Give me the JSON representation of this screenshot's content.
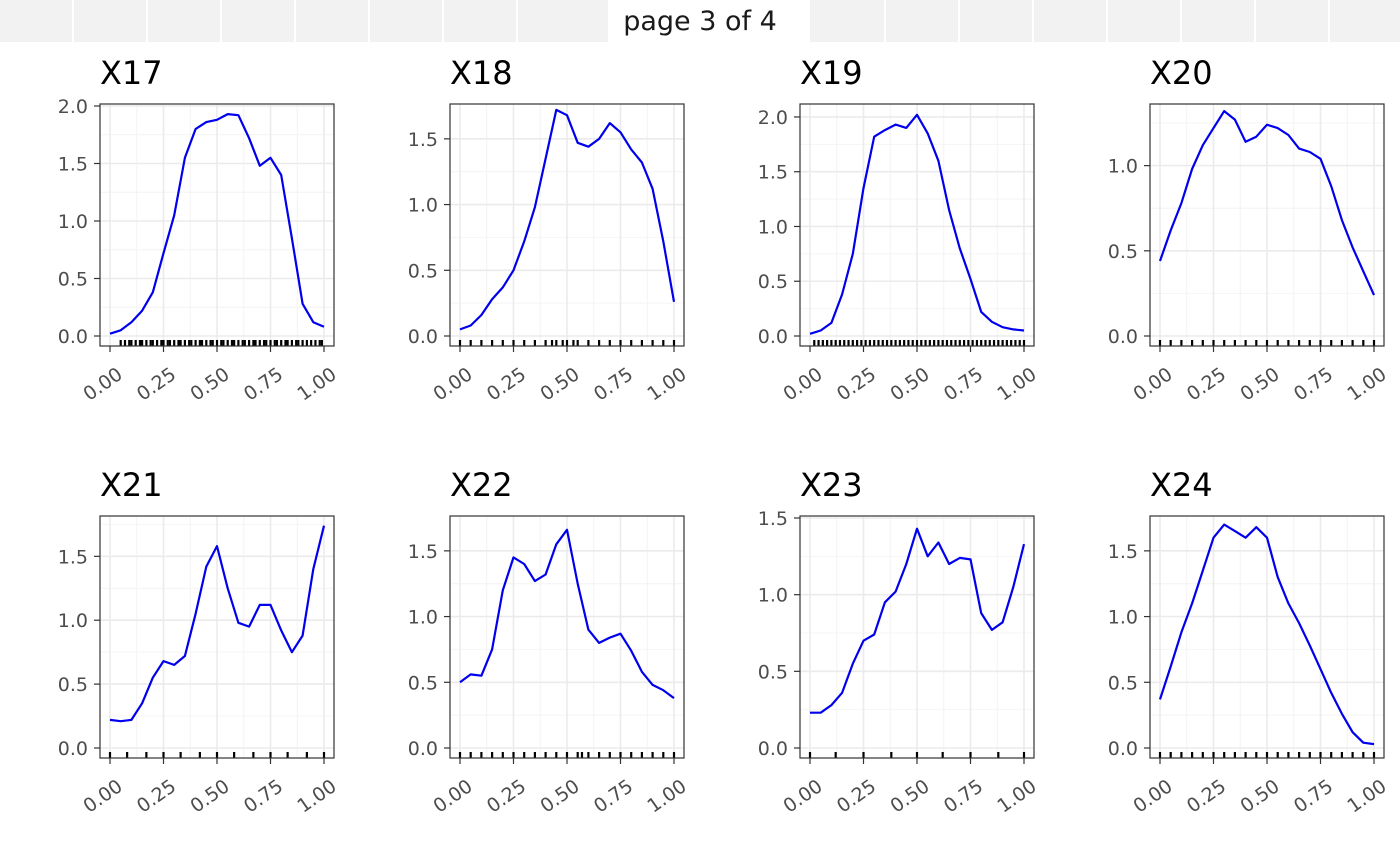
{
  "pager": {
    "label": "page 3 of 4"
  },
  "colors": {
    "line": "#0000ee",
    "grid_major": "#ebebeb",
    "grid_minor": "#f4f4f4",
    "panel_border": "#333333",
    "rug": "#000000",
    "pager_bg": "#f2f2f2"
  },
  "chart_data": [
    {
      "type": "line",
      "title": "X17",
      "xlim": [
        0,
        1
      ],
      "ylim": [
        0,
        2.0
      ],
      "xticks": [
        "0.00",
        "0.25",
        "0.50",
        "0.75",
        "1.00"
      ],
      "yticks": [
        "0.0",
        "0.5",
        "1.0",
        "1.5",
        "2.0"
      ],
      "x": [
        0,
        0.05,
        0.1,
        0.15,
        0.2,
        0.25,
        0.3,
        0.35,
        0.4,
        0.45,
        0.5,
        0.55,
        0.6,
        0.65,
        0.7,
        0.75,
        0.8,
        0.85,
        0.9,
        0.95,
        1.0
      ],
      "y": [
        0.02,
        0.05,
        0.12,
        0.22,
        0.38,
        0.72,
        1.05,
        1.55,
        1.8,
        1.86,
        1.88,
        1.93,
        1.92,
        1.72,
        1.48,
        1.55,
        1.4,
        0.85,
        0.28,
        0.12,
        0.08
      ],
      "rug": [
        0.05,
        0.07,
        0.09,
        0.1,
        0.12,
        0.14,
        0.15,
        0.17,
        0.19,
        0.2,
        0.22,
        0.24,
        0.25,
        0.27,
        0.28,
        0.3,
        0.32,
        0.33,
        0.35,
        0.37,
        0.38,
        0.4,
        0.42,
        0.43,
        0.45,
        0.47,
        0.48,
        0.5,
        0.52,
        0.53,
        0.55,
        0.57,
        0.58,
        0.6,
        0.62,
        0.63,
        0.65,
        0.67,
        0.68,
        0.7,
        0.72,
        0.73,
        0.75,
        0.77,
        0.78,
        0.8,
        0.82,
        0.83,
        0.85,
        0.87,
        0.88,
        0.9,
        0.92,
        0.94,
        0.96,
        0.98,
        0.99
      ]
    },
    {
      "type": "line",
      "title": "X18",
      "xlim": [
        0,
        1
      ],
      "ylim": [
        0,
        1.75
      ],
      "xticks": [
        "0.00",
        "0.25",
        "0.50",
        "0.75",
        "1.00"
      ],
      "yticks": [
        "0.0",
        "0.5",
        "1.0",
        "1.5"
      ],
      "x": [
        0,
        0.05,
        0.1,
        0.15,
        0.2,
        0.25,
        0.3,
        0.35,
        0.4,
        0.45,
        0.5,
        0.55,
        0.6,
        0.65,
        0.7,
        0.75,
        0.8,
        0.85,
        0.9,
        0.95,
        1.0
      ],
      "y": [
        0.05,
        0.08,
        0.16,
        0.28,
        0.37,
        0.5,
        0.72,
        0.98,
        1.35,
        1.72,
        1.68,
        1.47,
        1.44,
        1.5,
        1.62,
        1.55,
        1.42,
        1.32,
        1.12,
        0.72,
        0.26
      ],
      "rug": [
        0.0,
        0.05,
        0.1,
        0.15,
        0.2,
        0.25,
        0.3,
        0.35,
        0.4,
        0.43,
        0.45,
        0.48,
        0.5,
        0.53,
        0.55,
        0.6,
        0.65,
        0.7,
        0.75,
        0.8,
        0.85,
        0.9,
        0.95,
        1.0
      ]
    },
    {
      "type": "line",
      "title": "X19",
      "xlim": [
        0,
        1
      ],
      "ylim": [
        0,
        2.1
      ],
      "xticks": [
        "0.00",
        "0.25",
        "0.50",
        "0.75",
        "1.00"
      ],
      "yticks": [
        "0.0",
        "0.5",
        "1.0",
        "1.5",
        "2.0"
      ],
      "x": [
        0,
        0.05,
        0.1,
        0.15,
        0.2,
        0.25,
        0.3,
        0.35,
        0.4,
        0.45,
        0.5,
        0.55,
        0.6,
        0.65,
        0.7,
        0.75,
        0.8,
        0.85,
        0.9,
        0.95,
        1.0
      ],
      "y": [
        0.02,
        0.05,
        0.12,
        0.38,
        0.75,
        1.35,
        1.82,
        1.88,
        1.93,
        1.9,
        2.02,
        1.85,
        1.6,
        1.15,
        0.8,
        0.52,
        0.22,
        0.13,
        0.08,
        0.06,
        0.05
      ],
      "rug": [
        0.02,
        0.04,
        0.06,
        0.08,
        0.1,
        0.12,
        0.14,
        0.16,
        0.18,
        0.2,
        0.22,
        0.24,
        0.26,
        0.28,
        0.3,
        0.32,
        0.34,
        0.36,
        0.38,
        0.4,
        0.42,
        0.44,
        0.46,
        0.48,
        0.5,
        0.52,
        0.54,
        0.56,
        0.58,
        0.6,
        0.62,
        0.64,
        0.66,
        0.68,
        0.7,
        0.72,
        0.74,
        0.76,
        0.78,
        0.8,
        0.82,
        0.84,
        0.86,
        0.88,
        0.9,
        0.92,
        0.94,
        0.96,
        0.98,
        1.0
      ]
    },
    {
      "type": "line",
      "title": "X20",
      "xlim": [
        0,
        1
      ],
      "ylim": [
        0,
        1.35
      ],
      "xticks": [
        "0.00",
        "0.25",
        "0.50",
        "0.75",
        "1.00"
      ],
      "yticks": [
        "0.0",
        "0.5",
        "1.0"
      ],
      "x": [
        0,
        0.05,
        0.1,
        0.15,
        0.2,
        0.25,
        0.3,
        0.35,
        0.4,
        0.45,
        0.5,
        0.55,
        0.6,
        0.65,
        0.7,
        0.75,
        0.8,
        0.85,
        0.9,
        0.95,
        1.0
      ],
      "y": [
        0.44,
        0.62,
        0.78,
        0.98,
        1.12,
        1.22,
        1.32,
        1.27,
        1.14,
        1.17,
        1.24,
        1.22,
        1.18,
        1.1,
        1.08,
        1.04,
        0.88,
        0.68,
        0.52,
        0.38,
        0.24
      ],
      "rug": [
        0.0,
        0.05,
        0.1,
        0.15,
        0.2,
        0.25,
        0.3,
        0.35,
        0.4,
        0.45,
        0.5,
        0.55,
        0.6,
        0.65,
        0.7,
        0.75,
        0.8,
        0.85,
        0.9,
        0.95,
        1.0
      ]
    },
    {
      "type": "line",
      "title": "X21",
      "xlim": [
        0,
        1
      ],
      "ylim": [
        0,
        1.8
      ],
      "xticks": [
        "0.00",
        "0.25",
        "0.50",
        "0.75",
        "1.00"
      ],
      "yticks": [
        "0.0",
        "0.5",
        "1.0",
        "1.5"
      ],
      "x": [
        0,
        0.05,
        0.1,
        0.15,
        0.2,
        0.25,
        0.3,
        0.35,
        0.4,
        0.45,
        0.5,
        0.55,
        0.6,
        0.65,
        0.7,
        0.75,
        0.8,
        0.85,
        0.9,
        0.95,
        1.0
      ],
      "y": [
        0.22,
        0.21,
        0.22,
        0.35,
        0.55,
        0.68,
        0.65,
        0.72,
        1.05,
        1.42,
        1.58,
        1.25,
        0.98,
        0.95,
        1.12,
        1.12,
        0.92,
        0.75,
        0.88,
        1.4,
        1.74
      ],
      "rug": [
        0.0,
        0.08,
        0.17,
        0.25,
        0.33,
        0.42,
        0.5,
        0.58,
        0.67,
        0.75,
        0.83,
        0.92,
        1.0
      ]
    },
    {
      "type": "line",
      "title": "X22",
      "xlim": [
        0,
        1
      ],
      "ylim": [
        0,
        1.75
      ],
      "xticks": [
        "0.00",
        "0.25",
        "0.50",
        "0.75",
        "1.00"
      ],
      "yticks": [
        "0.0",
        "0.5",
        "1.0",
        "1.5"
      ],
      "x": [
        0,
        0.05,
        0.1,
        0.15,
        0.2,
        0.25,
        0.3,
        0.35,
        0.4,
        0.45,
        0.5,
        0.55,
        0.6,
        0.65,
        0.7,
        0.75,
        0.8,
        0.85,
        0.9,
        0.95,
        1.0
      ],
      "y": [
        0.5,
        0.56,
        0.55,
        0.75,
        1.2,
        1.45,
        1.4,
        1.27,
        1.32,
        1.55,
        1.66,
        1.25,
        0.9,
        0.8,
        0.84,
        0.87,
        0.74,
        0.58,
        0.48,
        0.44,
        0.38
      ],
      "rug": [
        0.0,
        0.05,
        0.1,
        0.15,
        0.2,
        0.25,
        0.3,
        0.35,
        0.4,
        0.45,
        0.5,
        0.55,
        0.57,
        0.6,
        0.65,
        0.7,
        0.75,
        0.8,
        0.85,
        0.9,
        0.95,
        1.0
      ]
    },
    {
      "type": "line",
      "title": "X23",
      "xlim": [
        0,
        1
      ],
      "ylim": [
        0,
        1.5
      ],
      "xticks": [
        "0.00",
        "0.25",
        "0.50",
        "0.75",
        "1.00"
      ],
      "yticks": [
        "0.0",
        "0.5",
        "1.0",
        "1.5"
      ],
      "x": [
        0,
        0.05,
        0.1,
        0.15,
        0.2,
        0.25,
        0.3,
        0.35,
        0.4,
        0.45,
        0.5,
        0.55,
        0.6,
        0.65,
        0.7,
        0.75,
        0.8,
        0.85,
        0.9,
        0.95,
        1.0
      ],
      "y": [
        0.23,
        0.23,
        0.28,
        0.36,
        0.55,
        0.7,
        0.74,
        0.95,
        1.02,
        1.2,
        1.43,
        1.25,
        1.34,
        1.2,
        1.24,
        1.23,
        0.88,
        0.77,
        0.82,
        1.05,
        1.33
      ],
      "rug": [
        0.0,
        0.12,
        0.25,
        0.38,
        0.5,
        0.62,
        0.75,
        0.88,
        1.0
      ]
    },
    {
      "type": "line",
      "title": "X24",
      "xlim": [
        0,
        1
      ],
      "ylim": [
        0,
        1.75
      ],
      "xticks": [
        "0.00",
        "0.25",
        "0.50",
        "0.75",
        "1.00"
      ],
      "yticks": [
        "0.0",
        "0.5",
        "1.0",
        "1.5"
      ],
      "x": [
        0,
        0.05,
        0.1,
        0.15,
        0.2,
        0.25,
        0.3,
        0.35,
        0.4,
        0.45,
        0.5,
        0.55,
        0.6,
        0.65,
        0.7,
        0.75,
        0.8,
        0.85,
        0.9,
        0.95,
        1.0
      ],
      "y": [
        0.37,
        0.62,
        0.88,
        1.1,
        1.35,
        1.6,
        1.7,
        1.65,
        1.6,
        1.68,
        1.6,
        1.3,
        1.1,
        0.95,
        0.78,
        0.6,
        0.42,
        0.26,
        0.12,
        0.04,
        0.03
      ],
      "rug": [
        0.0,
        0.05,
        0.1,
        0.15,
        0.2,
        0.25,
        0.3,
        0.35,
        0.4,
        0.45,
        0.5,
        0.55,
        0.6,
        0.65,
        0.7,
        0.75,
        0.8,
        0.85,
        0.9,
        0.95,
        1.0
      ]
    }
  ]
}
